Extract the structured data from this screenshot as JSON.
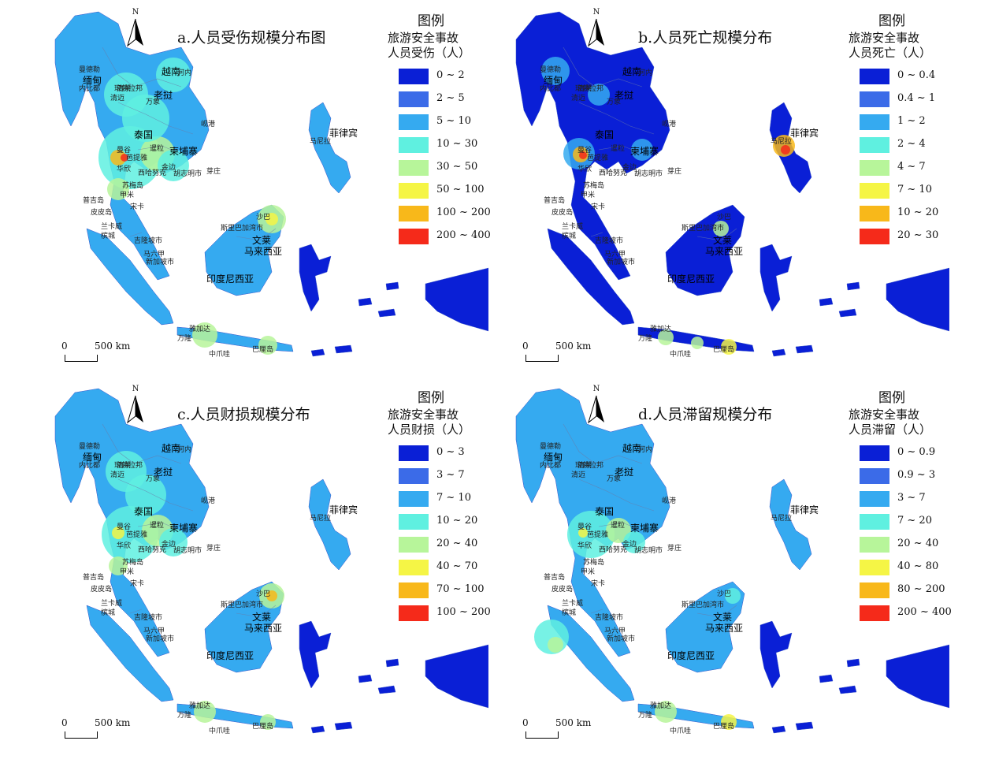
{
  "north_label": "N",
  "scale": {
    "zero": "0",
    "distance": "500 km"
  },
  "legend_title": "图例",
  "colors": [
    "#0a1fd6",
    "#3b6be8",
    "#35aaf0",
    "#5ff0e0",
    "#b7f59a",
    "#f5f545",
    "#f8b81a",
    "#f52a1a"
  ],
  "place_names": {
    "myanmar": "缅甸",
    "mandalay": "曼德勒",
    "naypyidaw": "内比都",
    "vietnam": "越南",
    "hanoi": "河内",
    "chiangmai": "清迈",
    "luangprabang": "琅勃拉邦",
    "chiangrai": "清莱",
    "laos": "老挝",
    "vientiane": "万象",
    "danang": "岘港",
    "thailand": "泰国",
    "bangkok": "曼谷",
    "cambodia": "柬埔寨",
    "siemreap": "暹粒",
    "pattaya": "芭提雅",
    "huahin": "华欣",
    "phnompenh": "金边",
    "sihanoukville": "西哈努克",
    "hcmc": "胡志明市",
    "nhatrang": "芽庄",
    "kohsamui": "苏梅岛",
    "phuket": "普吉岛",
    "phiphi": "皮皮岛",
    "krabi": "甲米",
    "songkhla": "宋卡",
    "langkawi": "兰卡威",
    "penang": "槟城",
    "kualalumpur": "吉隆坡市",
    "malacca": "马六甲",
    "singapore": "新加坡市",
    "philippines": "菲律宾",
    "manila": "马尼拉",
    "sabah": "沙巴",
    "bsb": "斯里巴加湾市",
    "brunei": "文莱",
    "malaysia": "马来西亚",
    "indonesia": "印度尼西亚",
    "jakarta": "雅加达",
    "bandung": "万隆",
    "java": "中爪哇",
    "bali": "巴厘岛"
  },
  "panels": [
    {
      "title": "a.人员受伤规模分布图",
      "subtitle_1": "旅游安全事故",
      "subtitle_2": "人员受伤（人）",
      "classes": [
        "0 ~ 2",
        "2 ~ 5",
        "5 ~ 10",
        "10 ~ 30",
        "30 ~ 50",
        "50 ~ 100",
        "100 ~ 200",
        "200 ~ 400"
      ]
    },
    {
      "title": "b.人员死亡规模分布",
      "subtitle_1": "旅游安全事故",
      "subtitle_2": "人员死亡（人）",
      "classes": [
        "0 ~ 0.4",
        "0.4 ~ 1",
        "1 ~ 2",
        "2 ~ 4",
        "4 ~ 7",
        "7 ~ 10",
        "10 ~ 20",
        "20 ~ 30"
      ]
    },
    {
      "title": "c.人员财损规模分布",
      "subtitle_1": "旅游安全事故",
      "subtitle_2": "人员财损（人）",
      "classes": [
        "0 ~ 3",
        "3 ~ 7",
        "7 ~ 10",
        "10 ~ 20",
        "20 ~ 40",
        "40 ~ 70",
        "70 ~ 100",
        "100 ~ 200"
      ]
    },
    {
      "title": "d.人员滞留规模分布",
      "subtitle_1": "旅游安全事故",
      "subtitle_2": "人员滞留（人）",
      "classes": [
        "0 ~ 0.9",
        "0.9 ~ 3",
        "3 ~ 7",
        "7 ~ 20",
        "20  ~ 40",
        "40  ~ 80",
        "80 ~ 200",
        "200 ~ 400"
      ]
    }
  ]
}
